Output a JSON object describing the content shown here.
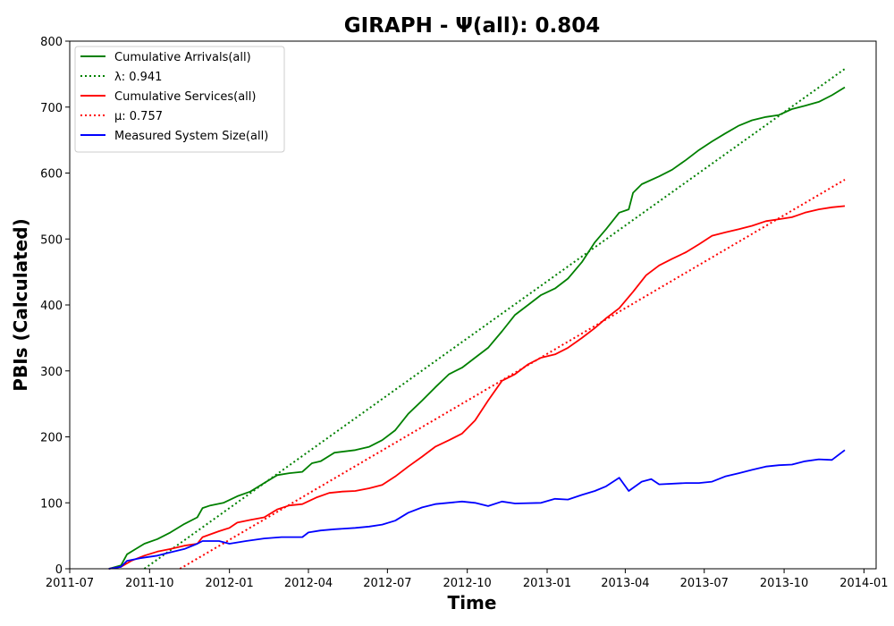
{
  "chart_data": {
    "type": "line",
    "title": "GIRAPH -  Ψ(all): 0.804",
    "xlabel": "Time",
    "ylabel": "PBIs (Calculated)",
    "x_axis": {
      "kind": "date",
      "range": [
        "2011-07-01",
        "2014-01-15"
      ],
      "ticks": [
        "2011-07-01",
        "2011-10-01",
        "2012-01-01",
        "2012-04-01",
        "2012-07-01",
        "2012-10-01",
        "2013-01-01",
        "2013-04-01",
        "2013-07-01",
        "2013-10-01",
        "2014-01-01"
      ],
      "tick_labels": [
        "2011-07",
        "2011-10",
        "2012-01",
        "2012-04",
        "2012-07",
        "2012-10",
        "2013-01",
        "2013-04",
        "2013-07",
        "2013-10",
        "2014-01"
      ]
    },
    "ylim": [
      0,
      800
    ],
    "yticks": [
      0,
      100,
      200,
      300,
      400,
      500,
      600,
      700,
      800
    ],
    "grid": false,
    "legend": {
      "position": "top-left",
      "entries": [
        "Cumulative Arrivals(all)",
        "λ: 0.941",
        "Cumulative Services(all)",
        "μ: 0.757",
        "Measured System Size(all)"
      ]
    },
    "series": [
      {
        "name": "Cumulative Arrivals(all)",
        "color": "#008000",
        "style": "solid",
        "points": [
          [
            "2011-08-15",
            0
          ],
          [
            "2011-08-29",
            5
          ],
          [
            "2011-09-05",
            22
          ],
          [
            "2011-09-15",
            30
          ],
          [
            "2011-09-25",
            38
          ],
          [
            "2011-10-10",
            45
          ],
          [
            "2011-10-25",
            55
          ],
          [
            "2011-11-10",
            68
          ],
          [
            "2011-11-25",
            78
          ],
          [
            "2011-12-01",
            92
          ],
          [
            "2011-12-10",
            96
          ],
          [
            "2011-12-25",
            100
          ],
          [
            "2012-01-10",
            110
          ],
          [
            "2012-01-25",
            117
          ],
          [
            "2012-02-10",
            130
          ],
          [
            "2012-02-25",
            142
          ],
          [
            "2012-03-10",
            145
          ],
          [
            "2012-03-25",
            147
          ],
          [
            "2012-04-05",
            160
          ],
          [
            "2012-04-15",
            163
          ],
          [
            "2012-05-01",
            176
          ],
          [
            "2012-05-25",
            180
          ],
          [
            "2012-06-10",
            185
          ],
          [
            "2012-06-25",
            195
          ],
          [
            "2012-07-10",
            210
          ],
          [
            "2012-07-25",
            235
          ],
          [
            "2012-08-10",
            255
          ],
          [
            "2012-08-25",
            275
          ],
          [
            "2012-09-10",
            295
          ],
          [
            "2012-09-25",
            305
          ],
          [
            "2012-10-10",
            320
          ],
          [
            "2012-10-25",
            335
          ],
          [
            "2012-11-10",
            360
          ],
          [
            "2012-11-25",
            385
          ],
          [
            "2012-12-10",
            400
          ],
          [
            "2012-12-25",
            415
          ],
          [
            "2013-01-10",
            425
          ],
          [
            "2013-01-25",
            440
          ],
          [
            "2013-02-10",
            465
          ],
          [
            "2013-02-25",
            495
          ],
          [
            "2013-03-10",
            515
          ],
          [
            "2013-03-25",
            540
          ],
          [
            "2013-04-05",
            545
          ],
          [
            "2013-04-10",
            570
          ],
          [
            "2013-04-20",
            583
          ],
          [
            "2013-05-10",
            595
          ],
          [
            "2013-05-25",
            605
          ],
          [
            "2013-06-10",
            620
          ],
          [
            "2013-06-25",
            635
          ],
          [
            "2013-07-10",
            648
          ],
          [
            "2013-07-25",
            660
          ],
          [
            "2013-08-10",
            672
          ],
          [
            "2013-08-25",
            680
          ],
          [
            "2013-09-10",
            685
          ],
          [
            "2013-09-25",
            688
          ],
          [
            "2013-10-10",
            697
          ],
          [
            "2013-10-25",
            702
          ],
          [
            "2013-11-10",
            708
          ],
          [
            "2013-11-25",
            718
          ],
          [
            "2013-12-10",
            730
          ]
        ]
      },
      {
        "name": "λ: 0.941",
        "color": "#008000",
        "style": "dotted",
        "points": [
          [
            "2011-09-25",
            0
          ],
          [
            "2013-12-10",
            758
          ]
        ]
      },
      {
        "name": "Cumulative Services(all)",
        "color": "#ff0000",
        "style": "solid",
        "points": [
          [
            "2011-08-15",
            0
          ],
          [
            "2011-08-29",
            3
          ],
          [
            "2011-09-10",
            12
          ],
          [
            "2011-09-25",
            20
          ],
          [
            "2011-10-10",
            26
          ],
          [
            "2011-10-25",
            30
          ],
          [
            "2011-11-10",
            35
          ],
          [
            "2011-11-25",
            38
          ],
          [
            "2011-12-01",
            48
          ],
          [
            "2011-12-20",
            57
          ],
          [
            "2012-01-01",
            62
          ],
          [
            "2012-01-10",
            70
          ],
          [
            "2012-01-25",
            74
          ],
          [
            "2012-02-10",
            78
          ],
          [
            "2012-02-25",
            90
          ],
          [
            "2012-03-10",
            96
          ],
          [
            "2012-03-25",
            98
          ],
          [
            "2012-04-10",
            108
          ],
          [
            "2012-04-25",
            115
          ],
          [
            "2012-05-10",
            117
          ],
          [
            "2012-05-25",
            118
          ],
          [
            "2012-06-10",
            122
          ],
          [
            "2012-06-25",
            127
          ],
          [
            "2012-07-10",
            140
          ],
          [
            "2012-07-25",
            155
          ],
          [
            "2012-08-10",
            170
          ],
          [
            "2012-08-25",
            185
          ],
          [
            "2012-09-10",
            195
          ],
          [
            "2012-09-25",
            205
          ],
          [
            "2012-10-10",
            225
          ],
          [
            "2012-10-25",
            255
          ],
          [
            "2012-11-10",
            285
          ],
          [
            "2012-11-25",
            295
          ],
          [
            "2012-12-10",
            310
          ],
          [
            "2012-12-25",
            320
          ],
          [
            "2013-01-10",
            325
          ],
          [
            "2013-01-25",
            335
          ],
          [
            "2013-02-10",
            350
          ],
          [
            "2013-02-25",
            365
          ],
          [
            "2013-03-10",
            380
          ],
          [
            "2013-03-25",
            395
          ],
          [
            "2013-04-10",
            420
          ],
          [
            "2013-04-25",
            445
          ],
          [
            "2013-05-10",
            460
          ],
          [
            "2013-05-25",
            470
          ],
          [
            "2013-06-10",
            480
          ],
          [
            "2013-06-25",
            492
          ],
          [
            "2013-07-10",
            505
          ],
          [
            "2013-07-25",
            510
          ],
          [
            "2013-08-10",
            515
          ],
          [
            "2013-08-25",
            520
          ],
          [
            "2013-09-10",
            527
          ],
          [
            "2013-09-25",
            530
          ],
          [
            "2013-10-10",
            533
          ],
          [
            "2013-10-25",
            540
          ],
          [
            "2013-11-10",
            545
          ],
          [
            "2013-11-25",
            548
          ],
          [
            "2013-12-10",
            550
          ]
        ]
      },
      {
        "name": "μ: 0.757",
        "color": "#ff0000",
        "style": "dotted",
        "points": [
          [
            "2011-11-05",
            0
          ],
          [
            "2013-12-10",
            590
          ]
        ]
      },
      {
        "name": "Measured System Size(all)",
        "color": "#0000ff",
        "style": "solid",
        "points": [
          [
            "2011-08-15",
            0
          ],
          [
            "2011-08-29",
            3
          ],
          [
            "2011-09-05",
            12
          ],
          [
            "2011-09-20",
            16
          ],
          [
            "2011-10-10",
            20
          ],
          [
            "2011-10-25",
            25
          ],
          [
            "2011-11-10",
            30
          ],
          [
            "2011-11-25",
            38
          ],
          [
            "2011-12-01",
            42
          ],
          [
            "2011-12-20",
            42
          ],
          [
            "2012-01-01",
            38
          ],
          [
            "2012-01-20",
            42
          ],
          [
            "2012-02-10",
            46
          ],
          [
            "2012-03-01",
            48
          ],
          [
            "2012-03-25",
            48
          ],
          [
            "2012-04-01",
            55
          ],
          [
            "2012-04-15",
            58
          ],
          [
            "2012-05-01",
            60
          ],
          [
            "2012-05-25",
            62
          ],
          [
            "2012-06-10",
            64
          ],
          [
            "2012-06-25",
            67
          ],
          [
            "2012-07-10",
            73
          ],
          [
            "2012-07-25",
            85
          ],
          [
            "2012-08-10",
            93
          ],
          [
            "2012-08-25",
            98
          ],
          [
            "2012-09-25",
            102
          ],
          [
            "2012-10-10",
            100
          ],
          [
            "2012-10-25",
            95
          ],
          [
            "2012-11-10",
            102
          ],
          [
            "2012-11-25",
            99
          ],
          [
            "2012-12-25",
            100
          ],
          [
            "2013-01-10",
            106
          ],
          [
            "2013-01-25",
            105
          ],
          [
            "2013-02-10",
            112
          ],
          [
            "2013-02-25",
            118
          ],
          [
            "2013-03-10",
            125
          ],
          [
            "2013-03-25",
            138
          ],
          [
            "2013-04-05",
            118
          ],
          [
            "2013-04-20",
            132
          ],
          [
            "2013-05-01",
            136
          ],
          [
            "2013-05-10",
            128
          ],
          [
            "2013-06-10",
            130
          ],
          [
            "2013-06-25",
            130
          ],
          [
            "2013-07-10",
            132
          ],
          [
            "2013-07-25",
            140
          ],
          [
            "2013-08-10",
            145
          ],
          [
            "2013-08-25",
            150
          ],
          [
            "2013-09-10",
            155
          ],
          [
            "2013-09-25",
            157
          ],
          [
            "2013-10-10",
            158
          ],
          [
            "2013-10-25",
            163
          ],
          [
            "2013-11-10",
            166
          ],
          [
            "2013-11-25",
            165
          ],
          [
            "2013-12-10",
            180
          ]
        ]
      }
    ]
  }
}
